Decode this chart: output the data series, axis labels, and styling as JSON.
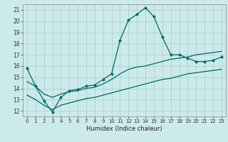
{
  "title": "",
  "xlabel": "Humidex (Indice chaleur)",
  "background_color": "#cceaea",
  "grid_color": "#aacccc",
  "line_color": "#006868",
  "xlim": [
    -0.5,
    23.5
  ],
  "ylim": [
    11.5,
    21.5
  ],
  "xticks": [
    0,
    1,
    2,
    3,
    4,
    5,
    6,
    7,
    8,
    9,
    10,
    11,
    12,
    13,
    14,
    15,
    16,
    17,
    18,
    19,
    20,
    21,
    22,
    23
  ],
  "yticks": [
    12,
    13,
    14,
    15,
    16,
    17,
    18,
    19,
    20,
    21
  ],
  "line1_x": [
    0,
    1,
    2,
    3,
    4,
    5,
    6,
    7,
    8,
    9,
    10,
    11,
    12,
    13,
    14,
    15,
    16,
    17,
    18,
    19,
    20,
    21,
    22,
    23
  ],
  "line1_y": [
    15.8,
    14.2,
    12.9,
    11.9,
    13.2,
    13.8,
    13.9,
    14.2,
    14.3,
    14.8,
    15.3,
    18.3,
    20.1,
    20.6,
    21.2,
    20.4,
    18.6,
    17.0,
    17.0,
    16.7,
    16.4,
    16.4,
    16.5,
    16.8
  ],
  "line2_x": [
    0,
    1,
    2,
    3,
    4,
    5,
    6,
    7,
    8,
    9,
    10,
    11,
    12,
    13,
    14,
    15,
    16,
    17,
    18,
    19,
    20,
    21,
    22,
    23
  ],
  "line2_y": [
    14.6,
    14.2,
    13.5,
    13.2,
    13.5,
    13.7,
    13.8,
    14.0,
    14.1,
    14.4,
    14.8,
    15.3,
    15.7,
    15.9,
    16.0,
    16.2,
    16.4,
    16.6,
    16.7,
    16.8,
    17.0,
    17.1,
    17.2,
    17.3
  ],
  "line3_x": [
    0,
    1,
    2,
    3,
    4,
    5,
    6,
    7,
    8,
    9,
    10,
    11,
    12,
    13,
    14,
    15,
    16,
    17,
    18,
    19,
    20,
    21,
    22,
    23
  ],
  "line3_y": [
    13.4,
    13.0,
    12.5,
    12.1,
    12.5,
    12.7,
    12.9,
    13.1,
    13.2,
    13.4,
    13.6,
    13.8,
    14.0,
    14.2,
    14.4,
    14.6,
    14.8,
    14.9,
    15.1,
    15.3,
    15.4,
    15.5,
    15.6,
    15.7
  ]
}
